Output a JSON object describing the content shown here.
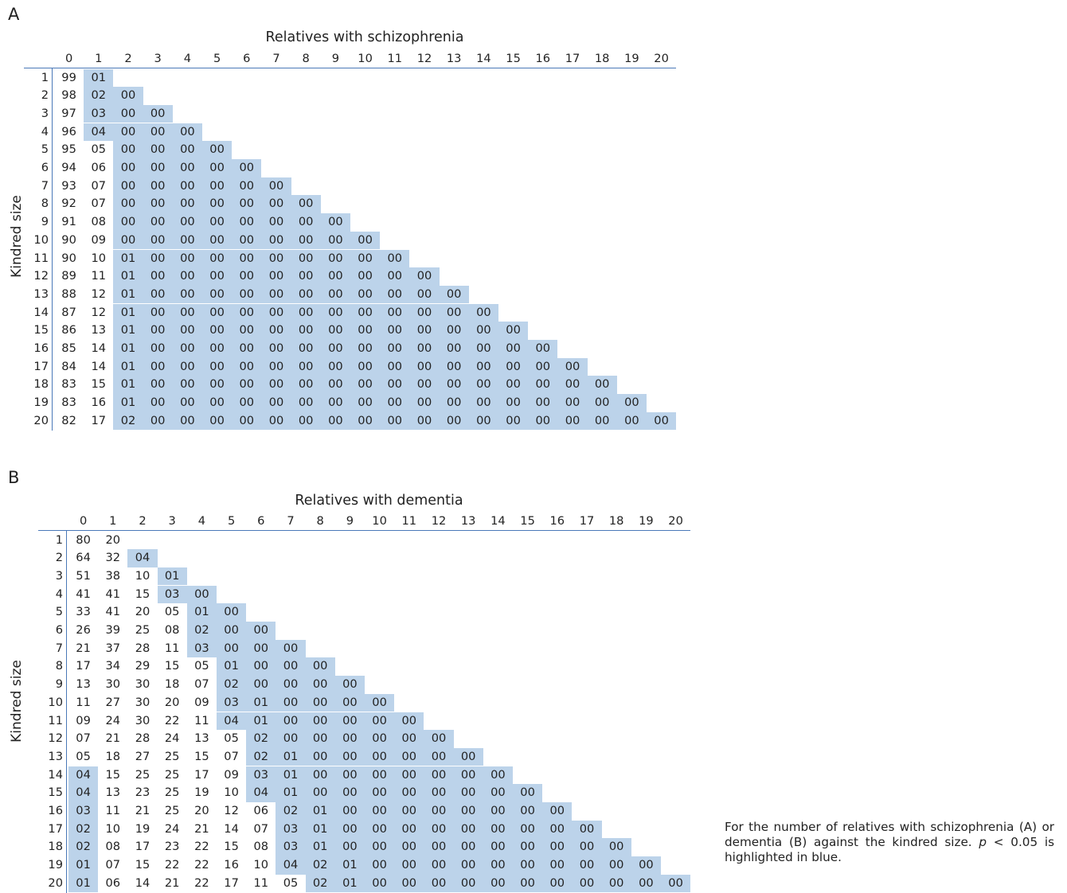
{
  "caption": {
    "part1": "For the number of relatives with schizophrenia (A) or dementia (B) against the kindred size. ",
    "p": "p",
    "part2": " < 0.05 is highlighted in blue."
  },
  "colors": {
    "highlight": "#bcd3ea",
    "rule": "#4a79b8",
    "text": "#222222"
  },
  "chart_data": [
    {
      "type": "table",
      "panel": "A",
      "title": "Relatives with schizophrenia",
      "ylabel": "Kindred size",
      "columns": [
        "0",
        "1",
        "2",
        "3",
        "4",
        "5",
        "6",
        "7",
        "8",
        "9",
        "10",
        "11",
        "12",
        "13",
        "14",
        "15",
        "16",
        "17",
        "18",
        "19",
        "20"
      ],
      "rows": [
        {
          "size": "1",
          "values": [
            "99",
            "01"
          ],
          "sig": [
            1
          ]
        },
        {
          "size": "2",
          "values": [
            "98",
            "02",
            "00"
          ],
          "sig": [
            1,
            2
          ]
        },
        {
          "size": "3",
          "values": [
            "97",
            "03",
            "00",
            "00"
          ],
          "sig": [
            1,
            2,
            3
          ]
        },
        {
          "size": "4",
          "values": [
            "96",
            "04",
            "00",
            "00",
            "00"
          ],
          "sig": [
            1,
            2,
            3,
            4
          ]
        },
        {
          "size": "5",
          "values": [
            "95",
            "05",
            "00",
            "00",
            "00",
            "00"
          ],
          "sig": [
            2,
            3,
            4,
            5
          ]
        },
        {
          "size": "6",
          "values": [
            "94",
            "06",
            "00",
            "00",
            "00",
            "00",
            "00"
          ],
          "sig": [
            2,
            3,
            4,
            5,
            6
          ]
        },
        {
          "size": "7",
          "values": [
            "93",
            "07",
            "00",
            "00",
            "00",
            "00",
            "00",
            "00"
          ],
          "sig": [
            2,
            3,
            4,
            5,
            6,
            7
          ]
        },
        {
          "size": "8",
          "values": [
            "92",
            "07",
            "00",
            "00",
            "00",
            "00",
            "00",
            "00",
            "00"
          ],
          "sig": [
            2,
            3,
            4,
            5,
            6,
            7,
            8
          ]
        },
        {
          "size": "9",
          "values": [
            "91",
            "08",
            "00",
            "00",
            "00",
            "00",
            "00",
            "00",
            "00",
            "00"
          ],
          "sig": [
            2,
            3,
            4,
            5,
            6,
            7,
            8,
            9
          ]
        },
        {
          "size": "10",
          "values": [
            "90",
            "09",
            "00",
            "00",
            "00",
            "00",
            "00",
            "00",
            "00",
            "00",
            "00"
          ],
          "sig": [
            2,
            3,
            4,
            5,
            6,
            7,
            8,
            9,
            10
          ]
        },
        {
          "size": "11",
          "values": [
            "90",
            "10",
            "01",
            "00",
            "00",
            "00",
            "00",
            "00",
            "00",
            "00",
            "00",
            "00"
          ],
          "sig": [
            2,
            3,
            4,
            5,
            6,
            7,
            8,
            9,
            10,
            11
          ]
        },
        {
          "size": "12",
          "values": [
            "89",
            "11",
            "01",
            "00",
            "00",
            "00",
            "00",
            "00",
            "00",
            "00",
            "00",
            "00",
            "00"
          ],
          "sig": [
            2,
            3,
            4,
            5,
            6,
            7,
            8,
            9,
            10,
            11,
            12
          ]
        },
        {
          "size": "13",
          "values": [
            "88",
            "12",
            "01",
            "00",
            "00",
            "00",
            "00",
            "00",
            "00",
            "00",
            "00",
            "00",
            "00",
            "00"
          ],
          "sig": [
            2,
            3,
            4,
            5,
            6,
            7,
            8,
            9,
            10,
            11,
            12,
            13
          ]
        },
        {
          "size": "14",
          "values": [
            "87",
            "12",
            "01",
            "00",
            "00",
            "00",
            "00",
            "00",
            "00",
            "00",
            "00",
            "00",
            "00",
            "00",
            "00"
          ],
          "sig": [
            2,
            3,
            4,
            5,
            6,
            7,
            8,
            9,
            10,
            11,
            12,
            13,
            14
          ]
        },
        {
          "size": "15",
          "values": [
            "86",
            "13",
            "01",
            "00",
            "00",
            "00",
            "00",
            "00",
            "00",
            "00",
            "00",
            "00",
            "00",
            "00",
            "00",
            "00"
          ],
          "sig": [
            2,
            3,
            4,
            5,
            6,
            7,
            8,
            9,
            10,
            11,
            12,
            13,
            14,
            15
          ]
        },
        {
          "size": "16",
          "values": [
            "85",
            "14",
            "01",
            "00",
            "00",
            "00",
            "00",
            "00",
            "00",
            "00",
            "00",
            "00",
            "00",
            "00",
            "00",
            "00",
            "00"
          ],
          "sig": [
            2,
            3,
            4,
            5,
            6,
            7,
            8,
            9,
            10,
            11,
            12,
            13,
            14,
            15,
            16
          ]
        },
        {
          "size": "17",
          "values": [
            "84",
            "14",
            "01",
            "00",
            "00",
            "00",
            "00",
            "00",
            "00",
            "00",
            "00",
            "00",
            "00",
            "00",
            "00",
            "00",
            "00",
            "00"
          ],
          "sig": [
            2,
            3,
            4,
            5,
            6,
            7,
            8,
            9,
            10,
            11,
            12,
            13,
            14,
            15,
            16,
            17
          ]
        },
        {
          "size": "18",
          "values": [
            "83",
            "15",
            "01",
            "00",
            "00",
            "00",
            "00",
            "00",
            "00",
            "00",
            "00",
            "00",
            "00",
            "00",
            "00",
            "00",
            "00",
            "00",
            "00"
          ],
          "sig": [
            2,
            3,
            4,
            5,
            6,
            7,
            8,
            9,
            10,
            11,
            12,
            13,
            14,
            15,
            16,
            17,
            18
          ]
        },
        {
          "size": "19",
          "values": [
            "83",
            "16",
            "01",
            "00",
            "00",
            "00",
            "00",
            "00",
            "00",
            "00",
            "00",
            "00",
            "00",
            "00",
            "00",
            "00",
            "00",
            "00",
            "00",
            "00"
          ],
          "sig": [
            2,
            3,
            4,
            5,
            6,
            7,
            8,
            9,
            10,
            11,
            12,
            13,
            14,
            15,
            16,
            17,
            18,
            19
          ]
        },
        {
          "size": "20",
          "values": [
            "82",
            "17",
            "02",
            "00",
            "00",
            "00",
            "00",
            "00",
            "00",
            "00",
            "00",
            "00",
            "00",
            "00",
            "00",
            "00",
            "00",
            "00",
            "00",
            "00",
            "00"
          ],
          "sig": [
            2,
            3,
            4,
            5,
            6,
            7,
            8,
            9,
            10,
            11,
            12,
            13,
            14,
            15,
            16,
            17,
            18,
            19,
            20
          ]
        }
      ]
    },
    {
      "type": "table",
      "panel": "B",
      "title": "Relatives with dementia",
      "ylabel": "Kindred size",
      "columns": [
        "0",
        "1",
        "2",
        "3",
        "4",
        "5",
        "6",
        "7",
        "8",
        "9",
        "10",
        "11",
        "12",
        "13",
        "14",
        "15",
        "16",
        "17",
        "18",
        "19",
        "20"
      ],
      "rows": [
        {
          "size": "1",
          "values": [
            "80",
            "20"
          ],
          "sig": []
        },
        {
          "size": "2",
          "values": [
            "64",
            "32",
            "04"
          ],
          "sig": [
            2
          ]
        },
        {
          "size": "3",
          "values": [
            "51",
            "38",
            "10",
            "01"
          ],
          "sig": [
            3
          ]
        },
        {
          "size": "4",
          "values": [
            "41",
            "41",
            "15",
            "03",
            "00"
          ],
          "sig": [
            3,
            4
          ]
        },
        {
          "size": "5",
          "values": [
            "33",
            "41",
            "20",
            "05",
            "01",
            "00"
          ],
          "sig": [
            4,
            5
          ]
        },
        {
          "size": "6",
          "values": [
            "26",
            "39",
            "25",
            "08",
            "02",
            "00",
            "00"
          ],
          "sig": [
            4,
            5,
            6
          ]
        },
        {
          "size": "7",
          "values": [
            "21",
            "37",
            "28",
            "11",
            "03",
            "00",
            "00",
            "00"
          ],
          "sig": [
            4,
            5,
            6,
            7
          ]
        },
        {
          "size": "8",
          "values": [
            "17",
            "34",
            "29",
            "15",
            "05",
            "01",
            "00",
            "00",
            "00"
          ],
          "sig": [
            5,
            6,
            7,
            8
          ]
        },
        {
          "size": "9",
          "values": [
            "13",
            "30",
            "30",
            "18",
            "07",
            "02",
            "00",
            "00",
            "00",
            "00"
          ],
          "sig": [
            5,
            6,
            7,
            8,
            9
          ]
        },
        {
          "size": "10",
          "values": [
            "11",
            "27",
            "30",
            "20",
            "09",
            "03",
            "01",
            "00",
            "00",
            "00",
            "00"
          ],
          "sig": [
            5,
            6,
            7,
            8,
            9,
            10
          ]
        },
        {
          "size": "11",
          "values": [
            "09",
            "24",
            "30",
            "22",
            "11",
            "04",
            "01",
            "00",
            "00",
            "00",
            "00",
            "00"
          ],
          "sig": [
            5,
            6,
            7,
            8,
            9,
            10,
            11
          ]
        },
        {
          "size": "12",
          "values": [
            "07",
            "21",
            "28",
            "24",
            "13",
            "05",
            "02",
            "00",
            "00",
            "00",
            "00",
            "00",
            "00"
          ],
          "sig": [
            6,
            7,
            8,
            9,
            10,
            11,
            12
          ]
        },
        {
          "size": "13",
          "values": [
            "05",
            "18",
            "27",
            "25",
            "15",
            "07",
            "02",
            "01",
            "00",
            "00",
            "00",
            "00",
            "00",
            "00"
          ],
          "sig": [
            6,
            7,
            8,
            9,
            10,
            11,
            12,
            13
          ]
        },
        {
          "size": "14",
          "values": [
            "04",
            "15",
            "25",
            "25",
            "17",
            "09",
            "03",
            "01",
            "00",
            "00",
            "00",
            "00",
            "00",
            "00",
            "00"
          ],
          "sig": [
            0,
            6,
            7,
            8,
            9,
            10,
            11,
            12,
            13,
            14
          ]
        },
        {
          "size": "15",
          "values": [
            "04",
            "13",
            "23",
            "25",
            "19",
            "10",
            "04",
            "01",
            "00",
            "00",
            "00",
            "00",
            "00",
            "00",
            "00",
            "00"
          ],
          "sig": [
            0,
            6,
            7,
            8,
            9,
            10,
            11,
            12,
            13,
            14,
            15
          ]
        },
        {
          "size": "16",
          "values": [
            "03",
            "11",
            "21",
            "25",
            "20",
            "12",
            "06",
            "02",
            "01",
            "00",
            "00",
            "00",
            "00",
            "00",
            "00",
            "00",
            "00"
          ],
          "sig": [
            0,
            7,
            8,
            9,
            10,
            11,
            12,
            13,
            14,
            15,
            16
          ]
        },
        {
          "size": "17",
          "values": [
            "02",
            "10",
            "19",
            "24",
            "21",
            "14",
            "07",
            "03",
            "01",
            "00",
            "00",
            "00",
            "00",
            "00",
            "00",
            "00",
            "00",
            "00"
          ],
          "sig": [
            0,
            7,
            8,
            9,
            10,
            11,
            12,
            13,
            14,
            15,
            16,
            17
          ]
        },
        {
          "size": "18",
          "values": [
            "02",
            "08",
            "17",
            "23",
            "22",
            "15",
            "08",
            "03",
            "01",
            "00",
            "00",
            "00",
            "00",
            "00",
            "00",
            "00",
            "00",
            "00",
            "00"
          ],
          "sig": [
            0,
            7,
            8,
            9,
            10,
            11,
            12,
            13,
            14,
            15,
            16,
            17,
            18
          ]
        },
        {
          "size": "19",
          "values": [
            "01",
            "07",
            "15",
            "22",
            "22",
            "16",
            "10",
            "04",
            "02",
            "01",
            "00",
            "00",
            "00",
            "00",
            "00",
            "00",
            "00",
            "00",
            "00",
            "00"
          ],
          "sig": [
            0,
            7,
            8,
            9,
            10,
            11,
            12,
            13,
            14,
            15,
            16,
            17,
            18,
            19
          ]
        },
        {
          "size": "20",
          "values": [
            "01",
            "06",
            "14",
            "21",
            "22",
            "17",
            "11",
            "05",
            "02",
            "01",
            "00",
            "00",
            "00",
            "00",
            "00",
            "00",
            "00",
            "00",
            "00",
            "00",
            "00"
          ],
          "sig": [
            0,
            8,
            9,
            10,
            11,
            12,
            13,
            14,
            15,
            16,
            17,
            18,
            19,
            20
          ]
        }
      ]
    }
  ]
}
